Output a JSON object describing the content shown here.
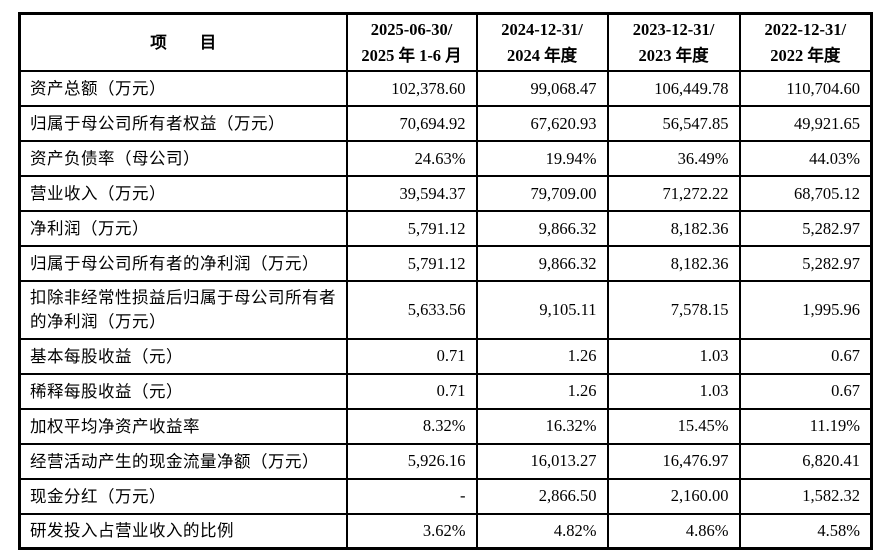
{
  "table": {
    "header": {
      "item_label": "项　　目",
      "periods": [
        {
          "line1": "2025-06-30/",
          "line2": "2025 年 1-6 月"
        },
        {
          "line1": "2024-12-31/",
          "line2": "2024 年度"
        },
        {
          "line1": "2023-12-31/",
          "line2": "2023 年度"
        },
        {
          "line1": "2022-12-31/",
          "line2": "2022 年度"
        }
      ]
    },
    "rows": [
      {
        "label": "资产总额（万元）",
        "values": [
          "102,378.60",
          "99,068.47",
          "106,449.78",
          "110,704.60"
        ],
        "tall": false
      },
      {
        "label": "归属于母公司所有者权益（万元）",
        "values": [
          "70,694.92",
          "67,620.93",
          "56,547.85",
          "49,921.65"
        ],
        "tall": false
      },
      {
        "label": "资产负债率（母公司）",
        "values": [
          "24.63%",
          "19.94%",
          "36.49%",
          "44.03%"
        ],
        "tall": false
      },
      {
        "label": "营业收入（万元）",
        "values": [
          "39,594.37",
          "79,709.00",
          "71,272.22",
          "68,705.12"
        ],
        "tall": false
      },
      {
        "label": "净利润（万元）",
        "values": [
          "5,791.12",
          "9,866.32",
          "8,182.36",
          "5,282.97"
        ],
        "tall": false
      },
      {
        "label": "归属于母公司所有者的净利润（万元）",
        "values": [
          "5,791.12",
          "9,866.32",
          "8,182.36",
          "5,282.97"
        ],
        "tall": false
      },
      {
        "label": "扣除非经常性损益后归属于母公司所有者的净利润（万元）",
        "values": [
          "5,633.56",
          "9,105.11",
          "7,578.15",
          "1,995.96"
        ],
        "tall": true
      },
      {
        "label": "基本每股收益（元）",
        "values": [
          "0.71",
          "1.26",
          "1.03",
          "0.67"
        ],
        "tall": false
      },
      {
        "label": "稀释每股收益（元）",
        "values": [
          "0.71",
          "1.26",
          "1.03",
          "0.67"
        ],
        "tall": false
      },
      {
        "label": "加权平均净资产收益率",
        "values": [
          "8.32%",
          "16.32%",
          "15.45%",
          "11.19%"
        ],
        "tall": false
      },
      {
        "label": "经营活动产生的现金流量净额（万元）",
        "values": [
          "5,926.16",
          "16,013.27",
          "16,476.97",
          "6,820.41"
        ],
        "tall": false
      },
      {
        "label": "现金分红（万元）",
        "values": [
          "-",
          "2,866.50",
          "2,160.00",
          "1,582.32"
        ],
        "tall": false
      },
      {
        "label": "研发投入占营业收入的比例",
        "values": [
          "3.62%",
          "4.82%",
          "4.86%",
          "4.58%"
        ],
        "tall": false
      }
    ]
  }
}
